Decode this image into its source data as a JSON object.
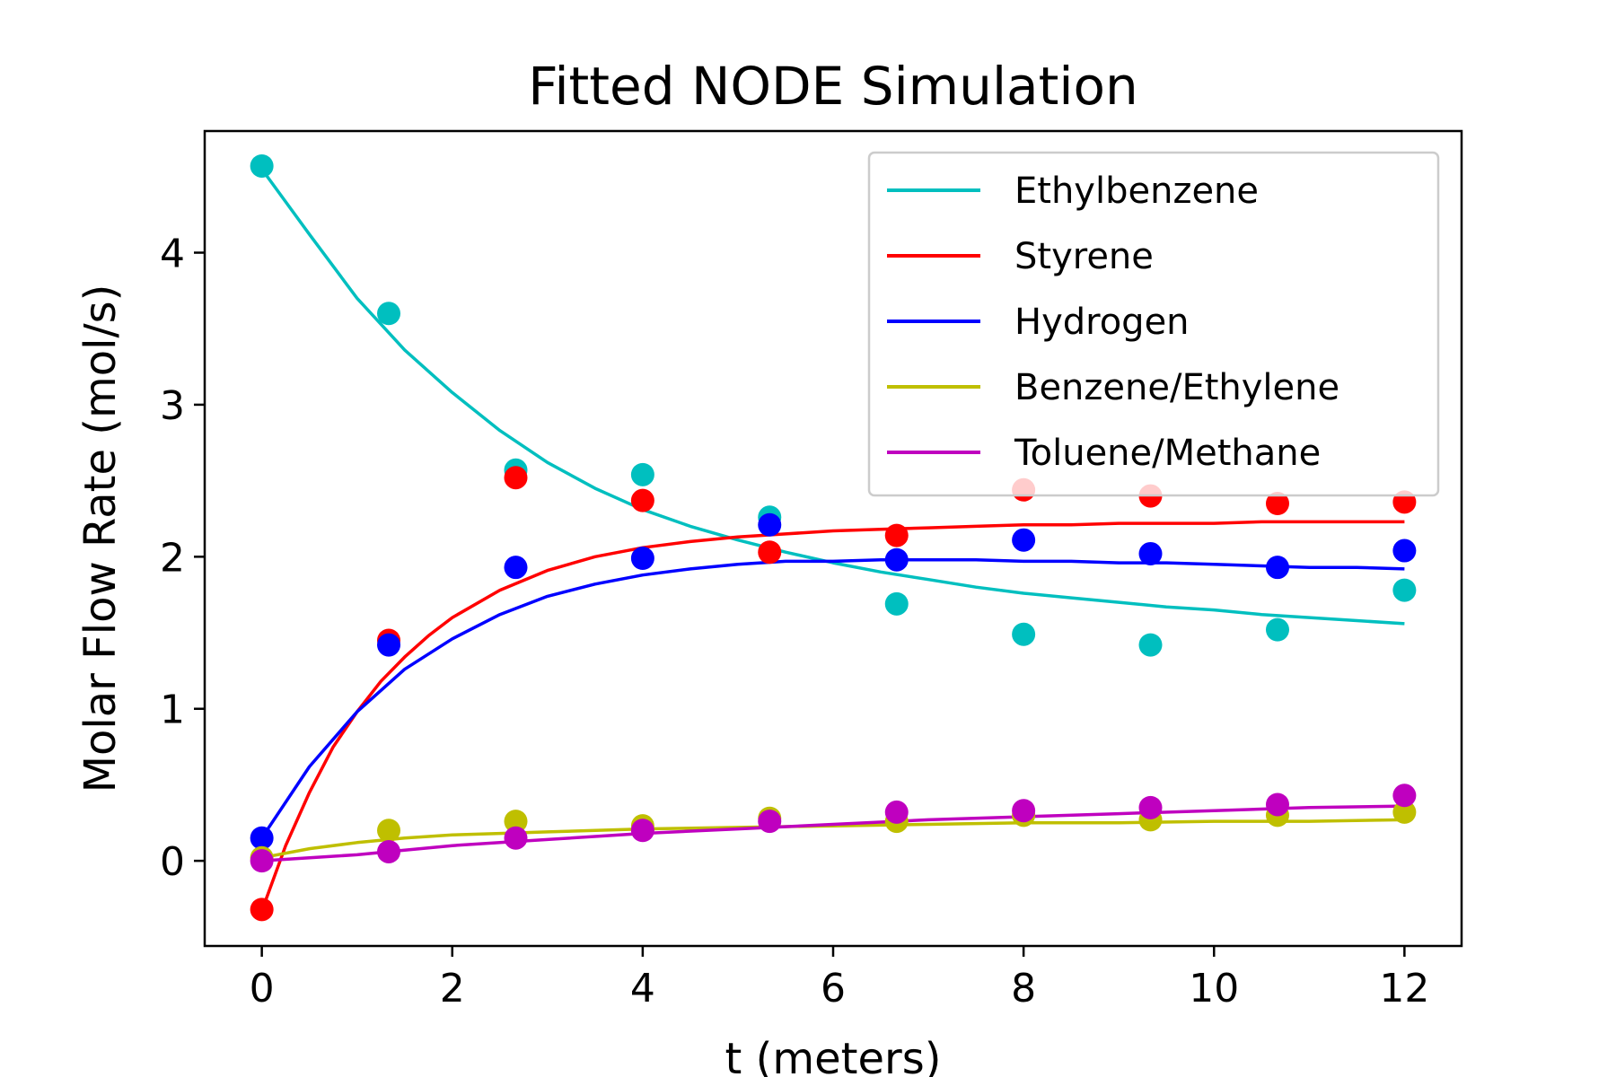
{
  "chart_data": {
    "type": "line",
    "title": "Fitted NODE Simulation",
    "xlabel": "t (meters)",
    "ylabel": "Molar Flow Rate (mol/s)",
    "xlim": [
      -0.6,
      12.6
    ],
    "ylim": [
      -0.56,
      4.8
    ],
    "xticks": [
      0,
      2,
      4,
      6,
      8,
      10,
      12
    ],
    "yticks": [
      0,
      1,
      2,
      3,
      4
    ],
    "grid": false,
    "legend_position": "top-right",
    "x": [
      0,
      1.333,
      2.667,
      4.0,
      5.333,
      6.667,
      8.0,
      9.333,
      10.667,
      12.0
    ],
    "series": [
      {
        "name": "Ethylbenzene",
        "color": "#00bfbf",
        "points": [
          4.57,
          3.6,
          2.57,
          2.54,
          2.26,
          1.69,
          1.49,
          1.42,
          1.52,
          1.78
        ],
        "fit_x": [
          0,
          0.5,
          1,
          1.5,
          2,
          2.5,
          3,
          3.5,
          4,
          4.5,
          5,
          5.5,
          6,
          6.5,
          7,
          7.5,
          8,
          8.5,
          9,
          9.5,
          10,
          10.5,
          11,
          11.5,
          12
        ],
        "fit_y": [
          4.55,
          4.12,
          3.7,
          3.36,
          3.08,
          2.83,
          2.62,
          2.45,
          2.31,
          2.2,
          2.11,
          2.03,
          1.96,
          1.9,
          1.85,
          1.8,
          1.76,
          1.73,
          1.7,
          1.67,
          1.65,
          1.62,
          1.6,
          1.58,
          1.56
        ]
      },
      {
        "name": "Styrene",
        "color": "#ff0000",
        "points": [
          -0.32,
          1.45,
          2.52,
          2.37,
          2.03,
          2.14,
          2.44,
          2.4,
          2.35,
          2.36
        ],
        "fit_x": [
          0,
          0.25,
          0.5,
          0.75,
          1,
          1.25,
          1.5,
          1.75,
          2,
          2.5,
          3,
          3.5,
          4,
          4.5,
          5,
          5.5,
          6,
          6.5,
          7,
          7.5,
          8,
          8.5,
          9,
          9.5,
          10,
          10.5,
          11,
          11.5,
          12
        ],
        "fit_y": [
          -0.33,
          0.1,
          0.45,
          0.75,
          0.98,
          1.18,
          1.34,
          1.48,
          1.6,
          1.78,
          1.91,
          2.0,
          2.06,
          2.1,
          2.13,
          2.15,
          2.17,
          2.18,
          2.19,
          2.2,
          2.21,
          2.21,
          2.22,
          2.22,
          2.22,
          2.23,
          2.23,
          2.23,
          2.23
        ]
      },
      {
        "name": "Hydrogen",
        "color": "#0000ff",
        "points": [
          0.15,
          1.42,
          1.93,
          1.99,
          2.21,
          1.98,
          2.11,
          2.02,
          1.93,
          2.04
        ],
        "fit_x": [
          0,
          0.5,
          1,
          1.5,
          2,
          2.5,
          3,
          3.5,
          4,
          4.5,
          5,
          5.5,
          6,
          6.5,
          7,
          7.5,
          8,
          8.5,
          9,
          9.5,
          10,
          10.5,
          11,
          11.5,
          12
        ],
        "fit_y": [
          0.15,
          0.62,
          0.98,
          1.26,
          1.46,
          1.62,
          1.74,
          1.82,
          1.88,
          1.92,
          1.95,
          1.97,
          1.97,
          1.98,
          1.98,
          1.98,
          1.97,
          1.97,
          1.96,
          1.96,
          1.95,
          1.94,
          1.93,
          1.93,
          1.92
        ]
      },
      {
        "name": "Benzene/Ethylene",
        "color": "#bfbf00",
        "points": [
          0.02,
          0.2,
          0.26,
          0.23,
          0.28,
          0.26,
          0.3,
          0.27,
          0.3,
          0.32
        ],
        "fit_x": [
          0,
          0.5,
          1,
          1.5,
          2,
          2.5,
          3,
          4,
          5,
          6,
          7,
          8,
          9,
          10,
          11,
          12
        ],
        "fit_y": [
          0.02,
          0.08,
          0.12,
          0.15,
          0.17,
          0.18,
          0.19,
          0.21,
          0.22,
          0.23,
          0.24,
          0.25,
          0.25,
          0.26,
          0.26,
          0.27
        ]
      },
      {
        "name": "Toluene/Methane",
        "color": "#bf00bf",
        "points": [
          0.0,
          0.06,
          0.15,
          0.2,
          0.26,
          0.32,
          0.33,
          0.35,
          0.37,
          0.43
        ],
        "fit_x": [
          0,
          0.5,
          1,
          1.5,
          2,
          2.5,
          3,
          4,
          5,
          6,
          7,
          8,
          9,
          10,
          11,
          12
        ],
        "fit_y": [
          0.0,
          0.02,
          0.04,
          0.07,
          0.1,
          0.12,
          0.14,
          0.18,
          0.21,
          0.24,
          0.27,
          0.29,
          0.31,
          0.33,
          0.35,
          0.36
        ]
      }
    ]
  }
}
